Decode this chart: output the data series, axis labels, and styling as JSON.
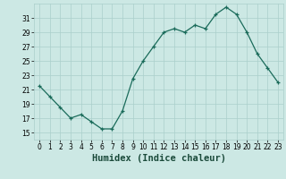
{
  "x": [
    0,
    1,
    2,
    3,
    4,
    5,
    6,
    7,
    8,
    9,
    10,
    11,
    12,
    13,
    14,
    15,
    16,
    17,
    18,
    19,
    20,
    21,
    22,
    23
  ],
  "y": [
    21.5,
    20.0,
    18.5,
    17.0,
    17.5,
    16.5,
    15.5,
    15.5,
    18.0,
    22.5,
    25.0,
    27.0,
    29.0,
    29.5,
    29.0,
    30.0,
    29.5,
    31.5,
    32.5,
    31.5,
    29.0,
    26.0,
    24.0,
    22.0
  ],
  "line_color": "#1a6b5a",
  "marker_color": "#1a6b5a",
  "bg_color": "#cce8e4",
  "grid_color": "#aacfcb",
  "xlabel": "Humidex (Indice chaleur)",
  "ylim": [
    14,
    33
  ],
  "yticks": [
    15,
    17,
    19,
    21,
    23,
    25,
    27,
    29,
    31
  ],
  "xticks": [
    0,
    1,
    2,
    3,
    4,
    5,
    6,
    7,
    8,
    9,
    10,
    11,
    12,
    13,
    14,
    15,
    16,
    17,
    18,
    19,
    20,
    21,
    22,
    23
  ],
  "tick_fontsize": 5.5,
  "xlabel_fontsize": 7.5
}
